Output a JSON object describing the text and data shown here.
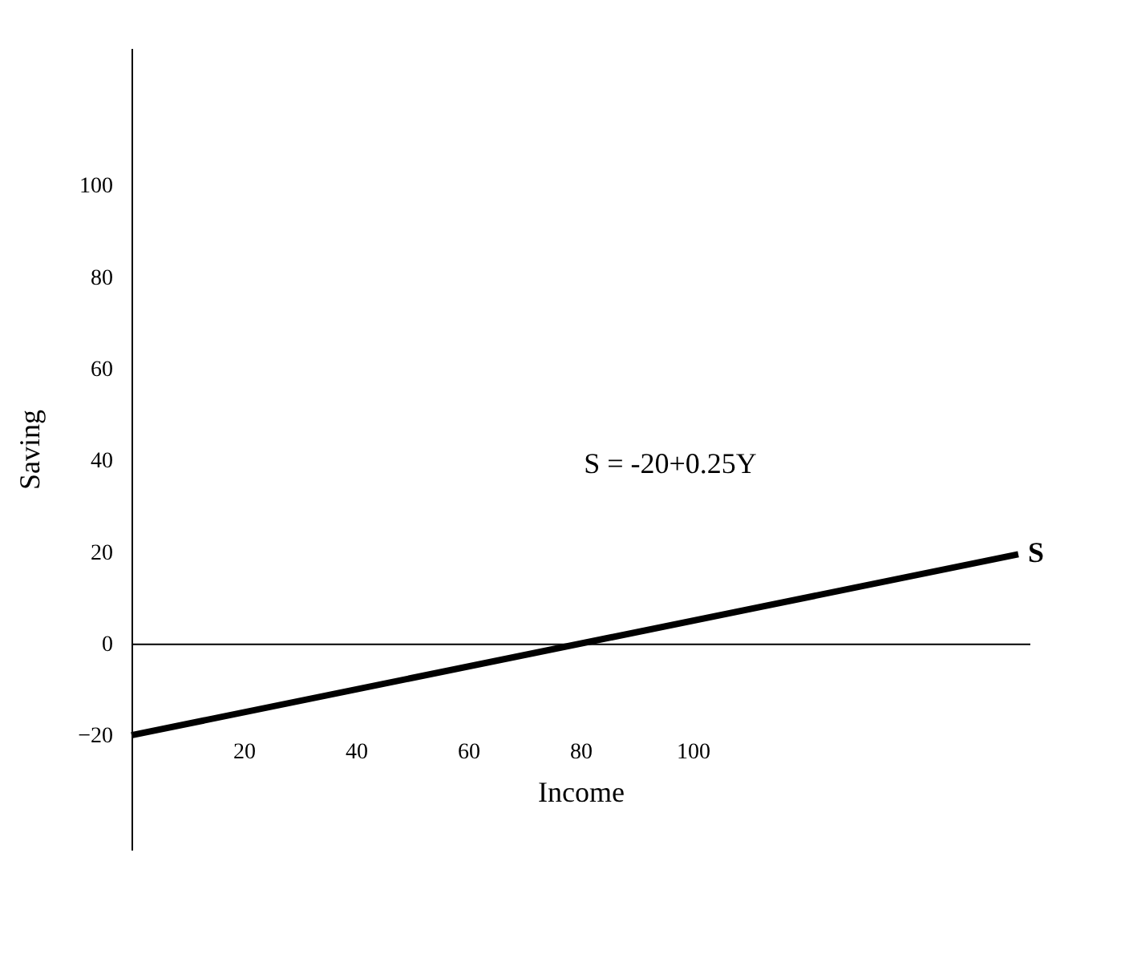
{
  "chart_data": {
    "type": "line",
    "xlabel": "Income",
    "ylabel": "Saving",
    "x": [
      0,
      158
    ],
    "series": [
      {
        "name": "S",
        "color": "#000000",
        "values": [
          -20,
          19.5
        ]
      }
    ],
    "xlim": [
      0,
      160
    ],
    "xticks": [
      20,
      40,
      60,
      80,
      100
    ],
    "ylim": [
      -45,
      130
    ],
    "yticks": [
      -20,
      0,
      20,
      40,
      60,
      80,
      100
    ],
    "annotations": [
      "S = -20+0.25Y"
    ],
    "marker": "none",
    "line_style": "solid"
  }
}
